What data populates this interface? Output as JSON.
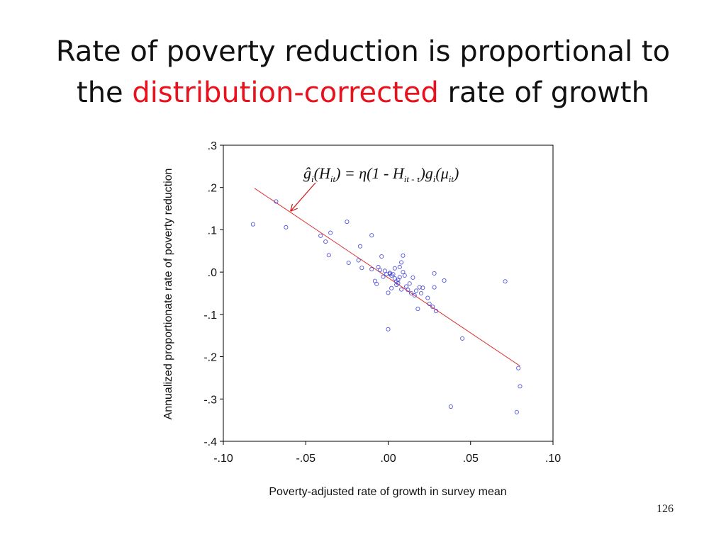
{
  "slide": {
    "title_line1": "Rate of poverty reduction is proportional to",
    "title_line2_prefix": "the ",
    "title_line2_highlight": "distribution-corrected",
    "title_line2_suffix": " rate of growth",
    "highlight_color": "#e8111c",
    "page_number": "126"
  },
  "chart_data": {
    "type": "scatter",
    "xlabel": "Poverty-adjusted rate of growth in survey mean",
    "ylabel": "Annualized proportionate rate of poverty reduction",
    "xlim": [
      -0.1,
      0.1
    ],
    "ylim": [
      -0.4,
      0.3
    ],
    "x_ticks": [
      {
        "value": -0.1,
        "label": "-.10"
      },
      {
        "value": -0.05,
        "label": "-.05"
      },
      {
        "value": 0.0,
        "label": ".00"
      },
      {
        "value": 0.05,
        "label": ".05"
      },
      {
        "value": 0.1,
        "label": ".10"
      }
    ],
    "y_ticks": [
      {
        "value": 0.3,
        "label": ".3"
      },
      {
        "value": 0.2,
        "label": ".2"
      },
      {
        "value": 0.1,
        "label": ".1"
      },
      {
        "value": 0.0,
        "label": ".0"
      },
      {
        "value": -0.1,
        "label": "-.1"
      },
      {
        "value": -0.2,
        "label": "-.2"
      },
      {
        "value": -0.3,
        "label": "-.3"
      },
      {
        "value": -0.4,
        "label": "-.4"
      }
    ],
    "grid": false,
    "point_color": "#2b2bd8",
    "fit_line_color": "#e03030",
    "fit_line": {
      "x": [
        -0.081,
        0.08
      ],
      "y": [
        0.198,
        -0.222
      ]
    },
    "annotation": {
      "formula": [
        "ĝ",
        "i",
        "(",
        "H",
        "it",
        ") = η(1 - ",
        "H",
        "it - τ",
        ")",
        "g",
        "i",
        "(",
        "μ",
        "it",
        ")"
      ],
      "arrow_target": {
        "x": -0.059,
        "y": 0.145
      },
      "arrow_color": "#d02020"
    },
    "points": [
      {
        "x": -0.082,
        "y": 0.113
      },
      {
        "x": -0.068,
        "y": 0.167
      },
      {
        "x": -0.062,
        "y": 0.106
      },
      {
        "x": -0.041,
        "y": 0.086
      },
      {
        "x": -0.038,
        "y": 0.072
      },
      {
        "x": -0.036,
        "y": 0.04
      },
      {
        "x": -0.035,
        "y": 0.093
      },
      {
        "x": -0.025,
        "y": 0.119
      },
      {
        "x": -0.024,
        "y": 0.022
      },
      {
        "x": -0.018,
        "y": 0.028
      },
      {
        "x": -0.017,
        "y": 0.061
      },
      {
        "x": -0.016,
        "y": 0.01
      },
      {
        "x": -0.01,
        "y": 0.087
      },
      {
        "x": -0.01,
        "y": 0.007
      },
      {
        "x": -0.008,
        "y": -0.021
      },
      {
        "x": -0.007,
        "y": -0.028
      },
      {
        "x": -0.006,
        "y": 0.012
      },
      {
        "x": -0.005,
        "y": 0.005
      },
      {
        "x": -0.004,
        "y": 0.037
      },
      {
        "x": -0.003,
        "y": -0.011
      },
      {
        "x": -0.002,
        "y": 0.003
      },
      {
        "x": -0.001,
        "y": -0.005
      },
      {
        "x": 0.0,
        "y": -0.049
      },
      {
        "x": 0.0,
        "y": -0.135
      },
      {
        "x": 0.001,
        "y": -0.002
      },
      {
        "x": 0.001,
        "y": -0.004
      },
      {
        "x": 0.002,
        "y": -0.008
      },
      {
        "x": 0.002,
        "y": -0.038
      },
      {
        "x": 0.003,
        "y": -0.005
      },
      {
        "x": 0.004,
        "y": -0.015
      },
      {
        "x": 0.004,
        "y": 0.009
      },
      {
        "x": 0.005,
        "y": -0.022
      },
      {
        "x": 0.005,
        "y": -0.03
      },
      {
        "x": 0.006,
        "y": -0.018
      },
      {
        "x": 0.006,
        "y": -0.026
      },
      {
        "x": 0.007,
        "y": 0.012
      },
      {
        "x": 0.007,
        "y": -0.012
      },
      {
        "x": 0.008,
        "y": 0.023
      },
      {
        "x": 0.008,
        "y": -0.041
      },
      {
        "x": 0.009,
        "y": 0.039
      },
      {
        "x": 0.009,
        "y": 0.0
      },
      {
        "x": 0.01,
        "y": -0.008
      },
      {
        "x": 0.011,
        "y": -0.034
      },
      {
        "x": 0.012,
        "y": -0.042
      },
      {
        "x": 0.013,
        "y": -0.027
      },
      {
        "x": 0.014,
        "y": -0.05
      },
      {
        "x": 0.015,
        "y": -0.013
      },
      {
        "x": 0.016,
        "y": -0.055
      },
      {
        "x": 0.017,
        "y": -0.044
      },
      {
        "x": 0.018,
        "y": -0.087
      },
      {
        "x": 0.019,
        "y": -0.036
      },
      {
        "x": 0.02,
        "y": -0.05
      },
      {
        "x": 0.021,
        "y": -0.037
      },
      {
        "x": 0.024,
        "y": -0.061
      },
      {
        "x": 0.025,
        "y": -0.075
      },
      {
        "x": 0.027,
        "y": -0.082
      },
      {
        "x": 0.028,
        "y": -0.003
      },
      {
        "x": 0.028,
        "y": -0.036
      },
      {
        "x": 0.029,
        "y": -0.092
      },
      {
        "x": 0.034,
        "y": -0.02
      },
      {
        "x": 0.038,
        "y": -0.318
      },
      {
        "x": 0.045,
        "y": -0.157
      },
      {
        "x": 0.071,
        "y": -0.022
      },
      {
        "x": 0.078,
        "y": -0.331
      },
      {
        "x": 0.079,
        "y": -0.227
      },
      {
        "x": 0.08,
        "y": -0.27
      }
    ]
  }
}
